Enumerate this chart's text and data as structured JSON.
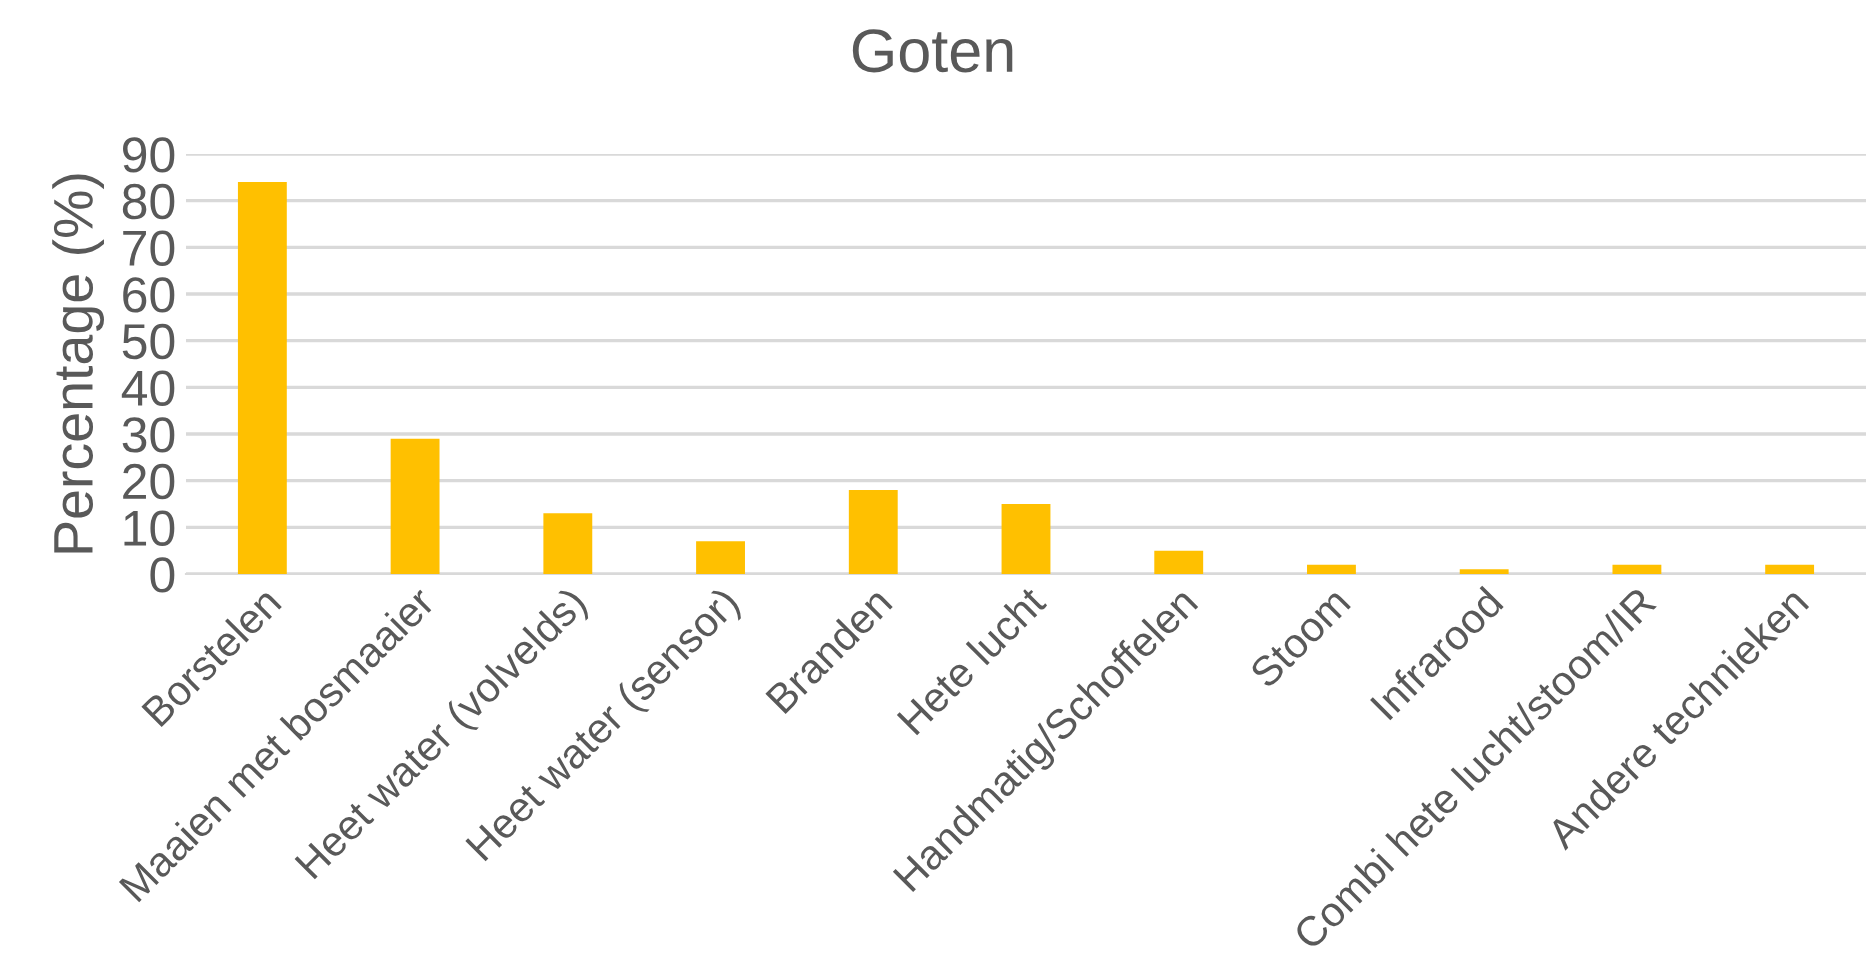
{
  "chart_data": {
    "type": "bar",
    "title": "Goten",
    "ylabel": "Percentage (%)",
    "categories": [
      "Borstelen",
      "Maaien met bosmaaier",
      "Heet water (volvelds)",
      "Heet water (sensor)",
      "Branden",
      "Hete lucht",
      "Handmatig/Schoffelen",
      "Stoom",
      "Infrarood",
      "Combi hete lucht/stoom/IR",
      "Andere technieken"
    ],
    "values": [
      84,
      29,
      13,
      7,
      18,
      15,
      5,
      2,
      1,
      2,
      2
    ],
    "color": "#ffc000",
    "ylim": [
      0,
      90
    ],
    "yticks": [
      0,
      10,
      20,
      30,
      40,
      50,
      60,
      70,
      80,
      90
    ],
    "grid": "y"
  }
}
